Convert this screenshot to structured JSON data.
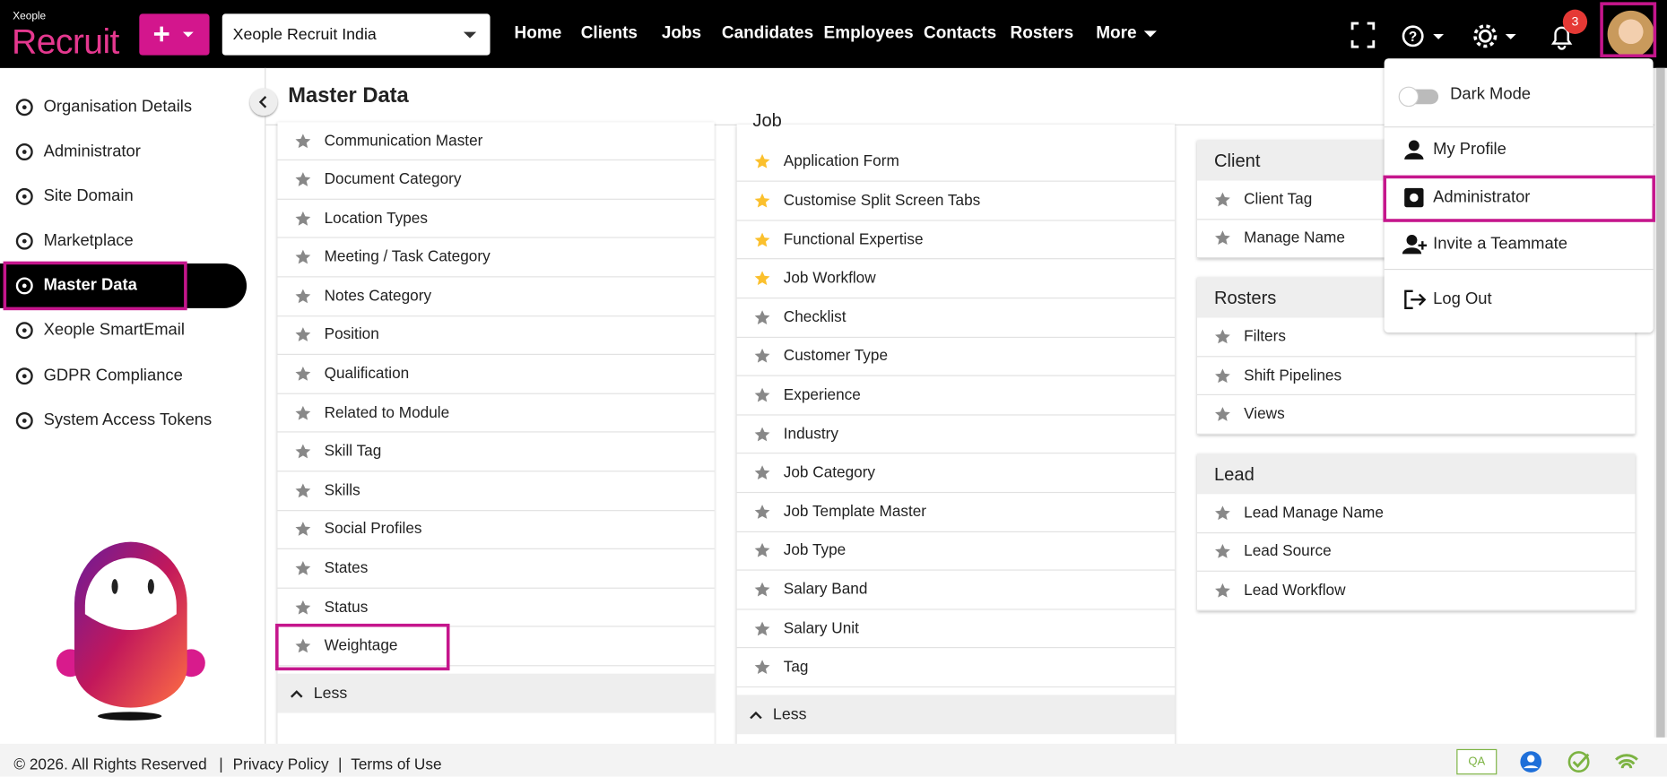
{
  "header": {
    "brand": "Xeople",
    "product": "Recruit",
    "org_select": "Xeople Recruit India",
    "nav": [
      "Home",
      "Clients",
      "Jobs",
      "Candidates",
      "Employees",
      "Contacts",
      "Rosters",
      "More"
    ],
    "notification_count": 3
  },
  "sidebar": {
    "items": [
      "Organisation Details",
      "Administrator",
      "Site Domain",
      "Marketplace",
      "Master Data",
      "Xeople SmartEmail",
      "GDPR Compliance",
      "System Access Tokens"
    ],
    "active": 4
  },
  "page": {
    "title": "Master Data"
  },
  "columns": [
    {
      "heading": null,
      "items": [
        {
          "label": "Communication Master",
          "starred": false
        },
        {
          "label": "Document Category",
          "starred": false
        },
        {
          "label": "Location Types",
          "starred": false
        },
        {
          "label": "Meeting / Task Category",
          "starred": false
        },
        {
          "label": "Notes Category",
          "starred": false
        },
        {
          "label": "Position",
          "starred": false
        },
        {
          "label": "Qualification",
          "starred": false
        },
        {
          "label": "Related to Module",
          "starred": false
        },
        {
          "label": "Skill Tag",
          "starred": false
        },
        {
          "label": "Skills",
          "starred": false
        },
        {
          "label": "Social Profiles",
          "starred": false
        },
        {
          "label": "States",
          "starred": false
        },
        {
          "label": "Status",
          "starred": false
        },
        {
          "label": "Weightage",
          "starred": false
        }
      ],
      "toggle": "Less"
    },
    {
      "heading": "Job",
      "items": [
        {
          "label": "Application Form",
          "starred": true
        },
        {
          "label": "Customise Split Screen Tabs",
          "starred": true
        },
        {
          "label": "Functional Expertise",
          "starred": true
        },
        {
          "label": "Job Workflow",
          "starred": true
        },
        {
          "label": "Checklist",
          "starred": false
        },
        {
          "label": "Customer Type",
          "starred": false
        },
        {
          "label": "Experience",
          "starred": false
        },
        {
          "label": "Industry",
          "starred": false
        },
        {
          "label": "Job Category",
          "starred": false
        },
        {
          "label": "Job Template Master",
          "starred": false
        },
        {
          "label": "Job Type",
          "starred": false
        },
        {
          "label": "Salary Band",
          "starred": false
        },
        {
          "label": "Salary Unit",
          "starred": false
        },
        {
          "label": "Tag",
          "starred": false
        }
      ],
      "toggle": "Less"
    }
  ],
  "sections": [
    {
      "heading": "Client",
      "items": [
        "Client Tag",
        "Manage Name"
      ]
    },
    {
      "heading": "Rosters",
      "items": [
        "Filters",
        "Shift Pipelines",
        "Views"
      ]
    },
    {
      "heading": "Lead",
      "items": [
        "Lead Manage Name",
        "Lead Source",
        "Lead Workflow"
      ]
    }
  ],
  "user_menu": [
    "Dark Mode",
    "My Profile",
    "Administrator",
    "Invite a Teammate",
    "Log Out"
  ],
  "footer": {
    "copyright": "© 2026. All Rights Reserved",
    "links": [
      "Privacy Policy",
      "Terms of Use"
    ],
    "badge": "QA"
  }
}
